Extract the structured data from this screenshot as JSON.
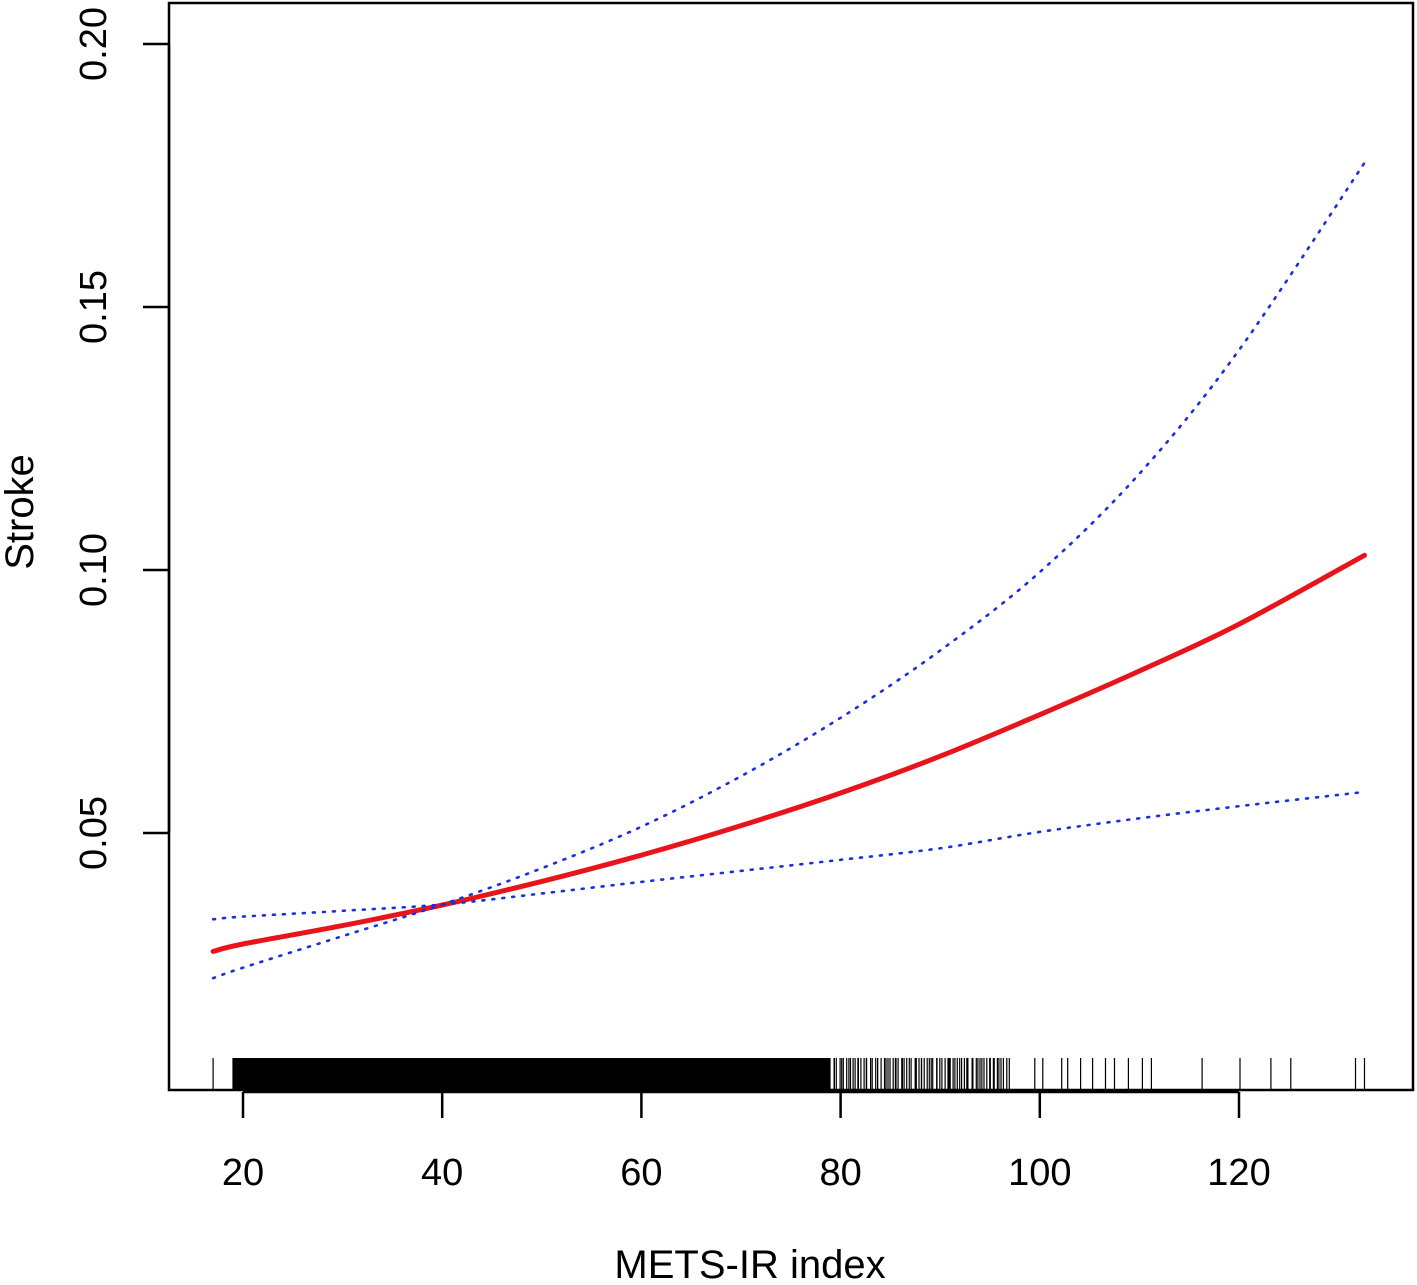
{
  "chart_data": {
    "type": "line",
    "title": "",
    "xlabel": "METS-IR index",
    "ylabel": "Stroke",
    "xlim": [
      17,
      132.6
    ],
    "ylim": [
      0.0,
      0.2
    ],
    "x_ticks": [
      20,
      40,
      60,
      80,
      100,
      120
    ],
    "x_tick_labels": [
      "20",
      "40",
      "60",
      "80",
      "100",
      "120"
    ],
    "y_ticks": [
      0.05,
      0.1,
      0.15,
      0.2
    ],
    "y_tick_labels": [
      "0.05",
      "0.10",
      "0.15",
      "0.20"
    ],
    "grid": false,
    "legend": "none",
    "series": [
      {
        "role": "fit",
        "style": "solid",
        "color": "#e8141b",
        "x": [
          17,
          20,
          30,
          40,
          50,
          60,
          70,
          80,
          90,
          100,
          110,
          120,
          132.6
        ],
        "y": [
          0.0275,
          0.0289,
          0.0324,
          0.0363,
          0.0408,
          0.0458,
          0.0514,
          0.0576,
          0.0646,
          0.0725,
          0.0808,
          0.0897,
          0.1028
        ]
      },
      {
        "role": "upper confidence limit",
        "style": "dotted",
        "color": "#1c2fdc",
        "x": [
          17,
          20,
          30,
          40,
          50,
          60,
          70,
          80,
          90,
          100,
          110,
          120,
          132.6
        ],
        "y": [
          0.0224,
          0.0244,
          0.0304,
          0.0364,
          0.0433,
          0.0512,
          0.0608,
          0.0719,
          0.0847,
          0.0996,
          0.1183,
          0.1418,
          0.1774
        ]
      },
      {
        "role": "lower confidence limit",
        "style": "dotted",
        "color": "#1c2fdc",
        "x": [
          17,
          20,
          30,
          40,
          50,
          60,
          70,
          80,
          90,
          100,
          110,
          120,
          132.6
        ],
        "y": [
          0.0336,
          0.0341,
          0.0352,
          0.0364,
          0.0385,
          0.0407,
          0.0428,
          0.0449,
          0.0471,
          0.0502,
          0.0528,
          0.0551,
          0.0578
        ]
      }
    ],
    "rug": {
      "dense_ranges": [
        [
          19,
          79
        ],
        [
          79,
          97
        ]
      ],
      "sparse_values": [
        17,
        99.5,
        100.3,
        102.2,
        102.8,
        104.1,
        105.3,
        106.6,
        107.5,
        108.9,
        110.3,
        111.2,
        116.3,
        120.1,
        123.2,
        125.2,
        131.7,
        132.6
      ]
    }
  }
}
